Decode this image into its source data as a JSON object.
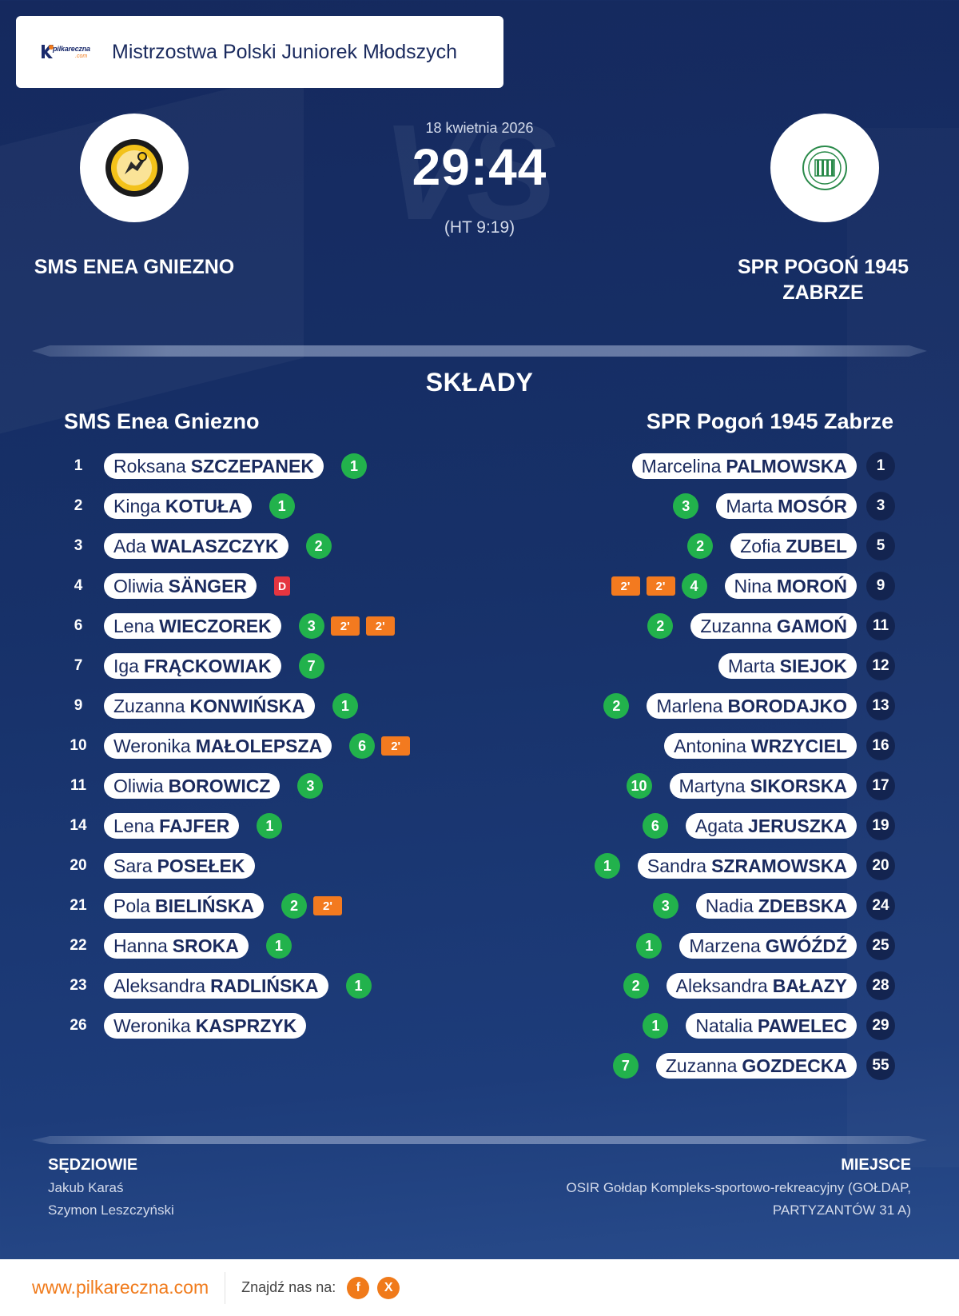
{
  "header": {
    "brand": "pilkareczna",
    "brand_suffix": ".com",
    "title": "Mistrzostwa Polski Juniorek Młodszych"
  },
  "match": {
    "date": "18 kwietnia 2026",
    "score": "29:44",
    "halftime": "(HT 9:19)",
    "vs_text": "VS",
    "home_team": "SMS ENEA GNIEZNO",
    "away_team_line1": "SPR POGOŃ 1945",
    "away_team_line2": "ZABRZE"
  },
  "lineups": {
    "title": "SKŁADY",
    "home_title": "SMS Enea Gniezno",
    "away_title": "SPR Pogoń 1945 Zabrze",
    "home": [
      {
        "num": "1",
        "first": "Roksana",
        "last": "SZCZEPANEK",
        "goals": "1",
        "penalties": [],
        "card": ""
      },
      {
        "num": "2",
        "first": "Kinga",
        "last": "KOTUŁA",
        "goals": "1",
        "penalties": [],
        "card": ""
      },
      {
        "num": "3",
        "first": "Ada",
        "last": "WALASZCZYK",
        "goals": "2",
        "penalties": [],
        "card": ""
      },
      {
        "num": "4",
        "first": "Oliwia",
        "last": "SÄNGER",
        "goals": "",
        "penalties": [],
        "card": "D"
      },
      {
        "num": "6",
        "first": "Lena",
        "last": "WIECZOREK",
        "goals": "3",
        "penalties": [
          "2'",
          "2'"
        ],
        "card": ""
      },
      {
        "num": "7",
        "first": "Iga",
        "last": "FRĄCKOWIAK",
        "goals": "7",
        "penalties": [],
        "card": ""
      },
      {
        "num": "9",
        "first": "Zuzanna",
        "last": "KONWIŃSKA",
        "goals": "1",
        "penalties": [],
        "card": ""
      },
      {
        "num": "10",
        "first": "Weronika",
        "last": "MAŁOLEPSZA",
        "goals": "6",
        "penalties": [
          "2'"
        ],
        "card": ""
      },
      {
        "num": "11",
        "first": "Oliwia",
        "last": "BOROWICZ",
        "goals": "3",
        "penalties": [],
        "card": ""
      },
      {
        "num": "14",
        "first": "Lena",
        "last": "FAJFER",
        "goals": "1",
        "penalties": [],
        "card": ""
      },
      {
        "num": "20",
        "first": "Sara",
        "last": "POSEŁEK",
        "goals": "",
        "penalties": [],
        "card": ""
      },
      {
        "num": "21",
        "first": "Pola",
        "last": "BIELIŃSKA",
        "goals": "2",
        "penalties": [
          "2'"
        ],
        "card": ""
      },
      {
        "num": "22",
        "first": "Hanna",
        "last": "SROKA",
        "goals": "1",
        "penalties": [],
        "card": ""
      },
      {
        "num": "23",
        "first": "Aleksandra",
        "last": "RADLIŃSKA",
        "goals": "1",
        "penalties": [],
        "card": ""
      },
      {
        "num": "26",
        "first": "Weronika",
        "last": "KASPRZYK",
        "goals": "",
        "penalties": [],
        "card": ""
      }
    ],
    "away": [
      {
        "num": "1",
        "first": "Marcelina",
        "last": "PALMOWSKA",
        "goals": "",
        "penalties": [],
        "card": ""
      },
      {
        "num": "3",
        "first": "Marta",
        "last": "MOSÓR",
        "goals": "3",
        "penalties": [],
        "card": ""
      },
      {
        "num": "5",
        "first": "Zofia",
        "last": "ZUBEL",
        "goals": "2",
        "penalties": [],
        "card": ""
      },
      {
        "num": "9",
        "first": "Nina",
        "last": "MOROŃ",
        "goals": "4",
        "penalties": [
          "2'",
          "2'"
        ],
        "card": ""
      },
      {
        "num": "11",
        "first": "Zuzanna",
        "last": "GAMOŃ",
        "goals": "2",
        "penalties": [],
        "card": ""
      },
      {
        "num": "12",
        "first": "Marta",
        "last": "SIEJOK",
        "goals": "",
        "penalties": [],
        "card": ""
      },
      {
        "num": "13",
        "first": "Marlena",
        "last": "BORODAJKO",
        "goals": "2",
        "penalties": [],
        "card": ""
      },
      {
        "num": "16",
        "first": "Antonina",
        "last": "WRZYCIEL",
        "goals": "",
        "penalties": [],
        "card": ""
      },
      {
        "num": "17",
        "first": "Martyna",
        "last": "SIKORSKA",
        "goals": "10",
        "penalties": [],
        "card": ""
      },
      {
        "num": "19",
        "first": "Agata",
        "last": "JERUSZKA",
        "goals": "6",
        "penalties": [],
        "card": ""
      },
      {
        "num": "20",
        "first": "Sandra",
        "last": "SZRAMOWSKA",
        "goals": "1",
        "penalties": [],
        "card": ""
      },
      {
        "num": "24",
        "first": "Nadia",
        "last": "ZDEBSKA",
        "goals": "3",
        "penalties": [],
        "card": ""
      },
      {
        "num": "25",
        "first": "Marzena",
        "last": "GWÓŹDŹ",
        "goals": "1",
        "penalties": [],
        "card": ""
      },
      {
        "num": "28",
        "first": "Aleksandra",
        "last": "BAŁAZY",
        "goals": "2",
        "penalties": [],
        "card": ""
      },
      {
        "num": "29",
        "first": "Natalia",
        "last": "PAWELEC",
        "goals": "1",
        "penalties": [],
        "card": ""
      },
      {
        "num": "55",
        "first": "Zuzanna",
        "last": "GOZDECKA",
        "goals": "7",
        "penalties": [],
        "card": ""
      }
    ]
  },
  "officials": {
    "title": "SĘDZIOWIE",
    "referees": [
      "Jakub Karaś",
      "Szymon Leszczyński"
    ]
  },
  "venue": {
    "title": "MIEJSCE",
    "text": "OSIR Gołdap Kompleks-sportowo-rekreacyjny (GOŁDAP, PARTYZANTÓW 31 A)"
  },
  "footer": {
    "site": "www.pilkareczna.com",
    "find_us": "Znajdź nas na:",
    "social": [
      {
        "icon": "facebook-icon",
        "glyph": "f"
      },
      {
        "icon": "x-icon",
        "glyph": "X"
      }
    ]
  },
  "colors": {
    "background": "#173169",
    "goal_badge": "#22b24c",
    "penalty_badge": "#f37a1f",
    "red_card": "#e53540",
    "accent": "#f07a1a"
  }
}
